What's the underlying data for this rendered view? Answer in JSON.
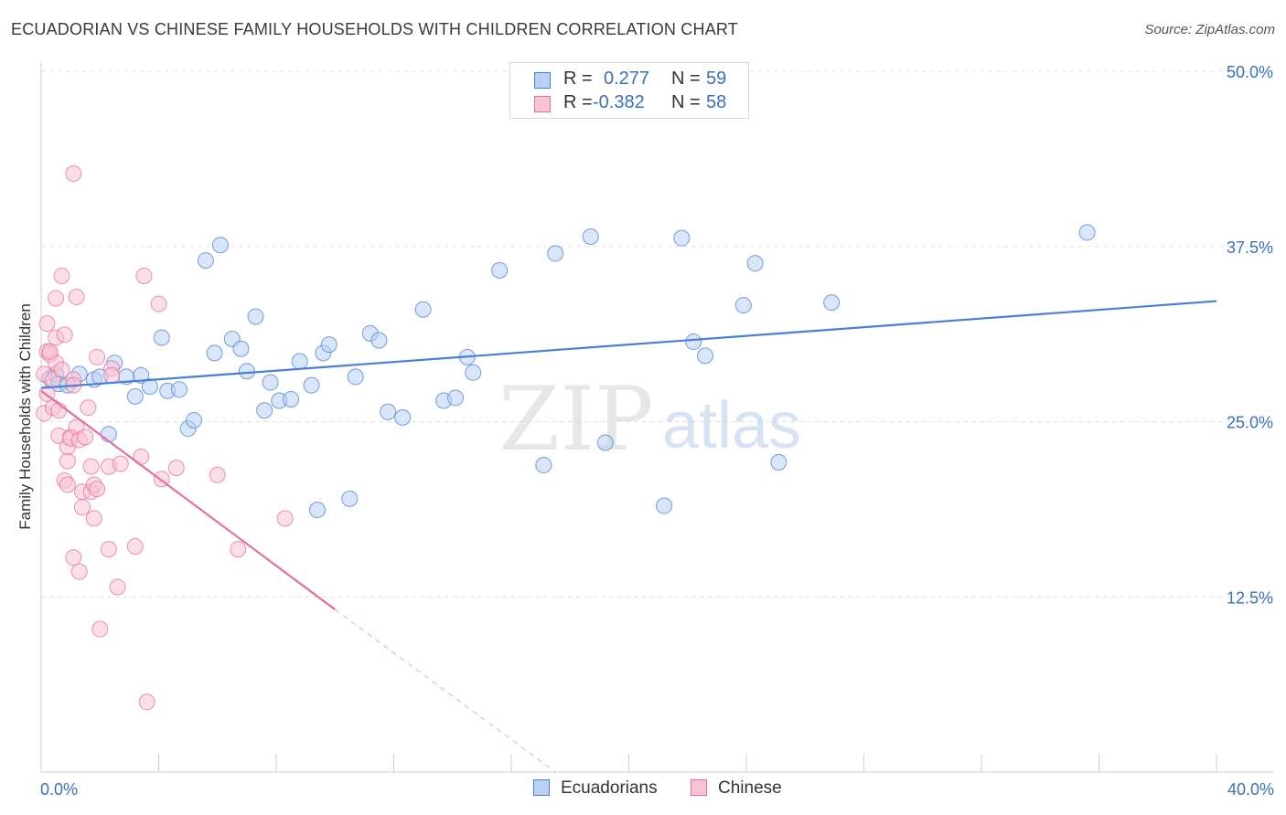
{
  "header": {
    "title": "ECUADORIAN VS CHINESE FAMILY HOUSEHOLDS WITH CHILDREN CORRELATION CHART",
    "source": "Source: ZipAtlas.com"
  },
  "colors": {
    "blue": "#4a7fd4",
    "blue_fill": "#b9d1f4",
    "pink": "#e4709a",
    "pink_fill": "#f7c3d3",
    "axis_tick_text": "#3a6fc4",
    "grid": "#e2e2e2"
  },
  "legend_top": {
    "rows": [
      {
        "r_label": "R =",
        "r_value": "0.277",
        "n_label": "N =",
        "n_value": "59"
      },
      {
        "r_label": "R =",
        "r_value": "-0.382",
        "n_label": "N =",
        "n_value": "58"
      }
    ]
  },
  "legend_bottom": {
    "items": [
      {
        "label": "Ecuadorians"
      },
      {
        "label": "Chinese"
      }
    ]
  },
  "watermark": {
    "zip": "ZIP",
    "atlas": "atlas"
  },
  "chart_data": {
    "type": "scatter",
    "title": "ECUADORIAN VS CHINESE FAMILY HOUSEHOLDS WITH CHILDREN CORRELATION CHART",
    "xlabel": "",
    "ylabel": "Family Households with Children",
    "xlim": [
      0,
      40
    ],
    "ylim": [
      0,
      50
    ],
    "x_tick_labels": [
      "0.0%",
      "40.0%"
    ],
    "y_ticks": [
      12.5,
      25.0,
      37.5,
      50.0
    ],
    "y_tick_labels": [
      "12.5%",
      "25.0%",
      "37.5%",
      "50.0%"
    ],
    "grid": true,
    "legend_position": "top-center",
    "series": [
      {
        "name": "Ecuadorians",
        "color": "#4a7fd4",
        "trend": {
          "x": [
            0,
            40
          ],
          "y": [
            27.4,
            33.6
          ]
        },
        "points": [
          [
            0.3,
            28.1
          ],
          [
            0.5,
            28.4
          ],
          [
            0.6,
            27.7
          ],
          [
            0.9,
            27.6
          ],
          [
            1.3,
            28.4
          ],
          [
            1.8,
            28.0
          ],
          [
            2.0,
            28.2
          ],
          [
            2.3,
            24.1
          ],
          [
            2.5,
            29.2
          ],
          [
            2.9,
            28.2
          ],
          [
            3.2,
            26.8
          ],
          [
            3.4,
            28.3
          ],
          [
            3.7,
            27.5
          ],
          [
            4.1,
            31.0
          ],
          [
            4.3,
            27.2
          ],
          [
            4.7,
            27.3
          ],
          [
            5.0,
            24.5
          ],
          [
            5.2,
            25.1
          ],
          [
            5.6,
            36.5
          ],
          [
            5.9,
            29.9
          ],
          [
            6.1,
            37.6
          ],
          [
            6.5,
            30.9
          ],
          [
            6.8,
            30.2
          ],
          [
            7.0,
            28.6
          ],
          [
            7.3,
            32.5
          ],
          [
            7.6,
            25.8
          ],
          [
            7.8,
            27.8
          ],
          [
            8.1,
            26.5
          ],
          [
            8.5,
            26.6
          ],
          [
            8.8,
            29.3
          ],
          [
            9.2,
            27.6
          ],
          [
            9.4,
            18.7
          ],
          [
            9.6,
            29.9
          ],
          [
            9.8,
            30.5
          ],
          [
            10.5,
            19.5
          ],
          [
            10.7,
            28.2
          ],
          [
            11.2,
            31.3
          ],
          [
            11.5,
            30.8
          ],
          [
            11.8,
            25.7
          ],
          [
            12.3,
            25.3
          ],
          [
            13.0,
            33.0
          ],
          [
            13.7,
            26.5
          ],
          [
            14.1,
            26.7
          ],
          [
            14.5,
            29.6
          ],
          [
            14.7,
            28.5
          ],
          [
            15.6,
            35.8
          ],
          [
            17.1,
            21.9
          ],
          [
            17.5,
            37.0
          ],
          [
            18.7,
            38.2
          ],
          [
            19.2,
            23.5
          ],
          [
            21.2,
            19.0
          ],
          [
            21.8,
            38.1
          ],
          [
            22.2,
            30.7
          ],
          [
            22.6,
            29.7
          ],
          [
            23.9,
            33.3
          ],
          [
            24.3,
            36.3
          ],
          [
            25.1,
            22.1
          ],
          [
            26.9,
            33.5
          ],
          [
            35.6,
            38.5
          ]
        ]
      },
      {
        "name": "Chinese",
        "color": "#e4709a",
        "trend": {
          "x": [
            0,
            10
          ],
          "y": [
            27.2,
            11.6
          ]
        },
        "trend_extension": {
          "x": [
            10,
            17.5
          ],
          "y": [
            11.6,
            0
          ]
        },
        "points": [
          [
            0.1,
            28.4
          ],
          [
            0.1,
            25.6
          ],
          [
            0.2,
            30.0
          ],
          [
            0.2,
            27.0
          ],
          [
            0.2,
            32.0
          ],
          [
            0.3,
            29.8
          ],
          [
            0.4,
            28.0
          ],
          [
            0.4,
            26.0
          ],
          [
            0.5,
            33.8
          ],
          [
            0.5,
            29.2
          ],
          [
            0.5,
            31.0
          ],
          [
            0.6,
            24.0
          ],
          [
            0.6,
            25.8
          ],
          [
            0.7,
            35.4
          ],
          [
            0.7,
            28.7
          ],
          [
            0.8,
            31.2
          ],
          [
            0.8,
            20.8
          ],
          [
            0.9,
            22.2
          ],
          [
            0.9,
            23.2
          ],
          [
            0.9,
            20.5
          ],
          [
            1.0,
            23.9
          ],
          [
            1.0,
            23.8
          ],
          [
            1.1,
            28.0
          ],
          [
            1.1,
            27.6
          ],
          [
            1.1,
            42.7
          ],
          [
            1.1,
            15.3
          ],
          [
            1.2,
            33.9
          ],
          [
            1.2,
            24.6
          ],
          [
            1.3,
            23.7
          ],
          [
            1.3,
            14.3
          ],
          [
            1.4,
            18.9
          ],
          [
            1.4,
            20.0
          ],
          [
            1.5,
            23.9
          ],
          [
            1.6,
            26.0
          ],
          [
            1.7,
            21.8
          ],
          [
            1.7,
            20.0
          ],
          [
            1.8,
            18.1
          ],
          [
            1.8,
            20.5
          ],
          [
            1.9,
            29.6
          ],
          [
            1.9,
            20.2
          ],
          [
            2.0,
            10.2
          ],
          [
            2.3,
            15.9
          ],
          [
            2.3,
            21.8
          ],
          [
            2.4,
            28.8
          ],
          [
            2.4,
            28.3
          ],
          [
            2.6,
            13.2
          ],
          [
            2.7,
            22.0
          ],
          [
            3.2,
            16.1
          ],
          [
            3.4,
            22.5
          ],
          [
            3.5,
            35.4
          ],
          [
            3.6,
            5.0
          ],
          [
            4.0,
            33.4
          ],
          [
            4.1,
            20.9
          ],
          [
            4.6,
            21.7
          ],
          [
            6.0,
            21.2
          ],
          [
            6.7,
            15.9
          ],
          [
            8.3,
            18.1
          ],
          [
            0.3,
            30.0
          ]
        ]
      }
    ]
  }
}
